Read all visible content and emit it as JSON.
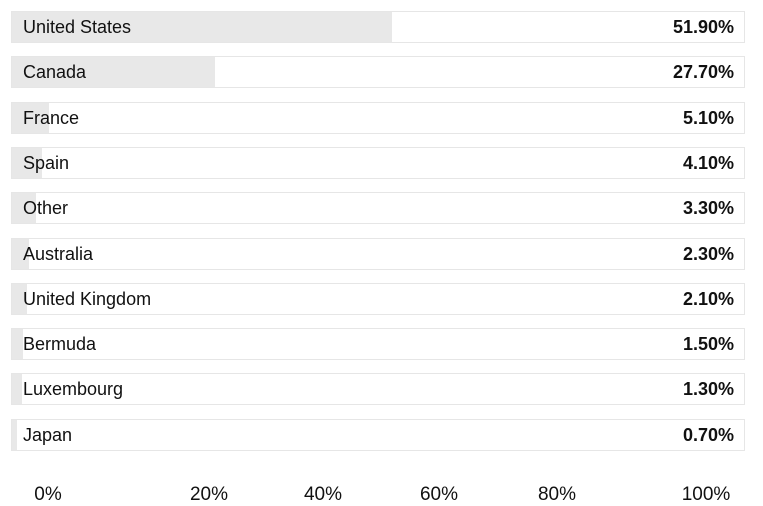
{
  "chart_data": {
    "type": "bar",
    "orientation": "horizontal",
    "categories": [
      "United States",
      "Canada",
      "France",
      "Spain",
      "Other",
      "Australia",
      "United Kingdom",
      "Bermuda",
      "Luxembourg",
      "Japan"
    ],
    "values": [
      51.9,
      27.7,
      5.1,
      4.1,
      3.3,
      2.3,
      2.1,
      1.5,
      1.3,
      0.7
    ],
    "value_labels": [
      "51.90%",
      "27.70%",
      "5.10%",
      "4.10%",
      "3.30%",
      "2.30%",
      "2.10%",
      "1.50%",
      "1.30%",
      "0.70%"
    ],
    "title": "",
    "xlabel": "",
    "ylabel": "",
    "xlim": [
      0,
      100
    ],
    "xticks": [
      0,
      20,
      40,
      60,
      80,
      100
    ],
    "xtick_labels": [
      "0%",
      "20%",
      "40%",
      "60%",
      "80%",
      "100%"
    ],
    "grid": false,
    "legend": "none",
    "colors": {
      "bar_fill": "#e8e8e8",
      "track": "#ffffff",
      "track_border": "#e6e6e6",
      "text": "#111111"
    }
  }
}
